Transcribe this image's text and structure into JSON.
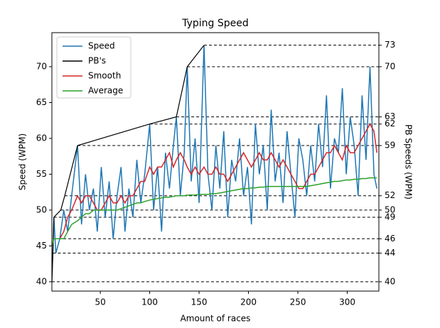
{
  "chart_data": {
    "type": "line",
    "title": "Typing Speed",
    "x_label": "Amount of races",
    "y_label": "Speed (WPM)",
    "y2_label": "PB Speeds (WPM)",
    "xlim": [
      1,
      332
    ],
    "xticks": [
      50,
      100,
      150,
      200,
      250,
      300
    ],
    "ylim": [
      38.7,
      74.75
    ],
    "yticks": [
      40,
      45,
      50,
      55,
      60,
      65,
      70
    ],
    "y2lim": [
      38.7,
      74.75
    ],
    "y2ticks": [
      40,
      44,
      46,
      49,
      50,
      52,
      59,
      62,
      63,
      70,
      73
    ],
    "legend": "upper left",
    "x": [
      1,
      3,
      5,
      9,
      13,
      17,
      21,
      27,
      31,
      35,
      39,
      43,
      47,
      51,
      55,
      59,
      63,
      67,
      71,
      75,
      79,
      83,
      87,
      91,
      95,
      100,
      104,
      108,
      112,
      116,
      120,
      124,
      127,
      131,
      135,
      138,
      142,
      146,
      150,
      155,
      159,
      163,
      167,
      171,
      175,
      179,
      183,
      187,
      191,
      195,
      199,
      203,
      207,
      211,
      215,
      219,
      223,
      227,
      231,
      235,
      239,
      243,
      247,
      251,
      255,
      259,
      263,
      267,
      271,
      275,
      279,
      283,
      287,
      291,
      295,
      299,
      303,
      307,
      311,
      315,
      319,
      323,
      327,
      330
    ],
    "series": [
      {
        "name": "Speed",
        "color": "#1f77b4",
        "values": [
          40,
          49,
          44,
          46,
          50,
          47,
          52,
          59,
          48,
          55,
          50,
          53,
          47,
          56,
          49,
          54,
          46,
          52,
          56,
          47,
          53,
          49,
          57,
          51,
          55,
          62,
          50,
          56,
          47,
          58,
          53,
          59,
          63,
          52,
          58,
          70,
          54,
          60,
          51,
          73,
          55,
          50,
          59,
          53,
          61,
          49,
          57,
          54,
          60,
          52,
          56,
          48,
          62,
          55,
          59,
          50,
          64,
          54,
          58,
          51,
          61,
          55,
          49,
          60,
          57,
          52,
          59,
          54,
          62,
          56,
          66,
          53,
          60,
          58,
          67,
          55,
          63,
          59,
          52,
          66,
          57,
          70,
          55,
          53
        ]
      },
      {
        "name": "PB's",
        "color": "#000000",
        "axis": "y2",
        "x": [
          1,
          2,
          2.5,
          3,
          10,
          14,
          27,
          100,
          127,
          138,
          155
        ],
        "values": [
          40,
          44,
          46,
          49,
          50,
          52,
          59,
          62,
          63,
          70,
          73
        ]
      },
      {
        "name": "Smooth",
        "color": "#d62728",
        "values": [
          45,
          46,
          46,
          46,
          47,
          49,
          50,
          52,
          51,
          52,
          52,
          51,
          50,
          50,
          51,
          52,
          51,
          51,
          52,
          51,
          52,
          52,
          53,
          54,
          54,
          56,
          55,
          56,
          56,
          57,
          58,
          56,
          57,
          58,
          57,
          56,
          55,
          56,
          55,
          56,
          55,
          55,
          56,
          55,
          55,
          54,
          55,
          56,
          57,
          58,
          57,
          56,
          57,
          58,
          57,
          57,
          58,
          57,
          56,
          57,
          56,
          55,
          54,
          53,
          53,
          54,
          55,
          55,
          56,
          57,
          58,
          58,
          59,
          58,
          57,
          59,
          58,
          58,
          59,
          60,
          61,
          62,
          61,
          58
        ]
      },
      {
        "name": "Average",
        "color": "#2ca02c",
        "values": [
          45,
          46,
          46,
          46,
          46,
          47,
          48,
          48.5,
          49,
          49.5,
          49.5,
          50,
          50,
          50,
          50,
          50,
          50,
          50,
          50.2,
          50.4,
          50.6,
          50.8,
          51,
          51,
          51.2,
          51.4,
          51.5,
          51.6,
          51.7,
          51.8,
          51.8,
          51.9,
          52,
          52,
          52,
          52.1,
          52.1,
          52.1,
          52.2,
          52.2,
          52.2,
          52.3,
          52.3,
          52.4,
          52.5,
          52.6,
          52.7,
          52.8,
          52.9,
          53,
          53,
          53.1,
          53.1,
          53.2,
          53.2,
          53.3,
          53.3,
          53.3,
          53.3,
          53.3,
          53.3,
          53.3,
          53.3,
          53.3,
          53.3,
          53.3,
          53.4,
          53.5,
          53.6,
          53.7,
          53.8,
          53.9,
          54,
          54,
          54.1,
          54.2,
          54.2,
          54.3,
          54.3,
          54.4,
          54.4,
          54.5,
          54.5,
          54.5
        ]
      }
    ]
  }
}
